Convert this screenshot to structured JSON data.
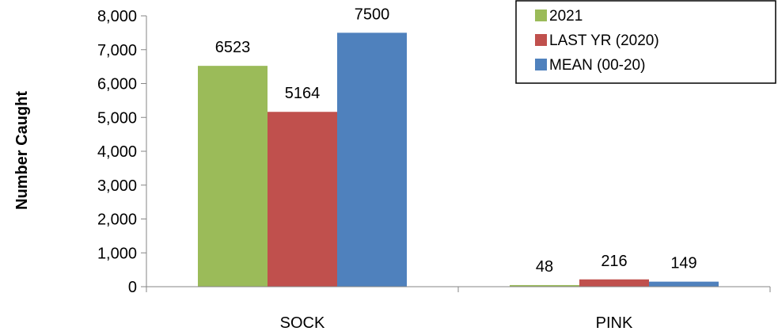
{
  "chart_data": {
    "type": "bar",
    "categories": [
      "SOCK",
      "PINK"
    ],
    "series": [
      {
        "name": "2021",
        "values": [
          6523,
          48
        ],
        "color": "#9BBB59"
      },
      {
        "name": "LAST YR (2020)",
        "values": [
          5164,
          216
        ],
        "color": "#C0504D"
      },
      {
        "name": "MEAN (00-20)",
        "values": [
          7500,
          149
        ],
        "color": "#4F81BD"
      }
    ],
    "data_labels": [
      [
        "6523",
        "48"
      ],
      [
        "5164",
        "216"
      ],
      [
        "7500",
        "149"
      ]
    ],
    "ylabel": "Number Caught",
    "ylim": [
      0,
      8000
    ],
    "yticks": [
      0,
      1000,
      2000,
      3000,
      4000,
      5000,
      6000,
      7000,
      8000
    ],
    "ytick_labels": [
      "0",
      "1,000",
      "2,000",
      "3,000",
      "4,000",
      "5,000",
      "6,000",
      "7,000",
      "8,000"
    ],
    "grid": false,
    "legend_position": "top-right"
  }
}
